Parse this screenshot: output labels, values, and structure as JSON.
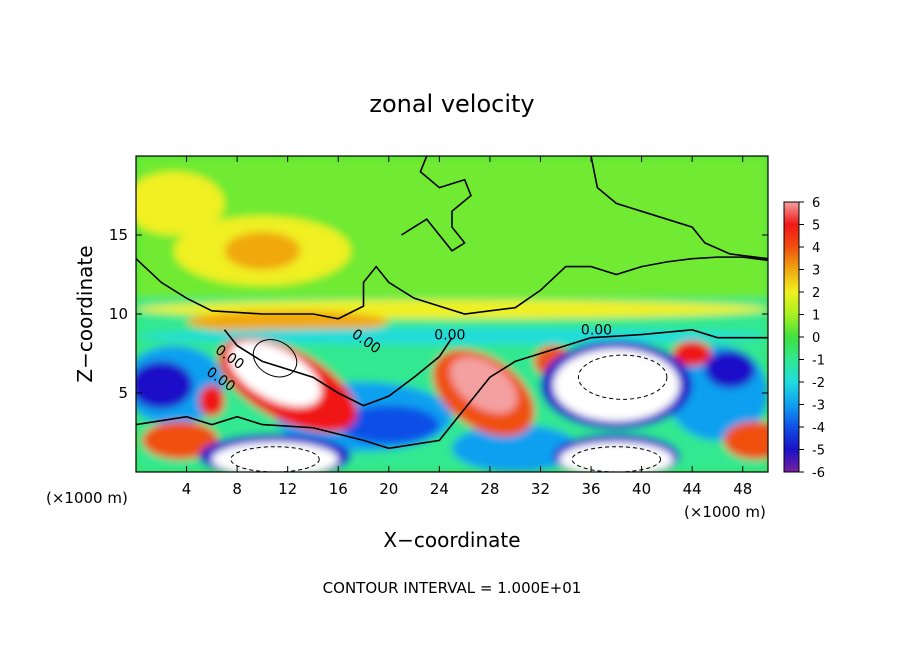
{
  "chart_data": {
    "type": "heatmap",
    "title": "zonal velocity",
    "xlabel": "X−coordinate",
    "ylabel": "Z−coordinate",
    "x_unit_left": "(×1000 m)",
    "x_unit_right": "(×1000 m)",
    "footer": "CONTOUR INTERVAL = 1.000E+01",
    "xlim": [
      0,
      50
    ],
    "ylim": [
      0,
      20
    ],
    "x_ticks": [
      4,
      8,
      12,
      16,
      20,
      24,
      28,
      32,
      36,
      40,
      44,
      48
    ],
    "y_ticks": [
      5,
      10,
      15
    ],
    "contour_labels": [
      "0.00",
      "0.00",
      "0.00",
      "0.00",
      "0.00"
    ],
    "colorbar": {
      "min": -6,
      "max": 6,
      "ticks": [
        6,
        5,
        4,
        3,
        2,
        1,
        0,
        -1,
        -2,
        -3,
        -4,
        -5,
        -6
      ],
      "stops": [
        {
          "v": -6,
          "c": "#7a1fa0"
        },
        {
          "v": -5,
          "c": "#1a10c8"
        },
        {
          "v": -4,
          "c": "#1050e6"
        },
        {
          "v": -3,
          "c": "#10a0f0"
        },
        {
          "v": -2,
          "c": "#20dcdc"
        },
        {
          "v": -1,
          "c": "#30e890"
        },
        {
          "v": 0,
          "c": "#40e040"
        },
        {
          "v": 1,
          "c": "#a8f020"
        },
        {
          "v": 2,
          "c": "#f0f020"
        },
        {
          "v": 3,
          "c": "#f0a810"
        },
        {
          "v": 4,
          "c": "#f05010"
        },
        {
          "v": 5,
          "c": "#f01818"
        },
        {
          "v": 6,
          "c": "#f4a0a0"
        }
      ]
    },
    "features": [
      {
        "kind": "warm_band",
        "x": [
          0,
          50
        ],
        "z": [
          10,
          11
        ],
        "value": 2
      },
      {
        "kind": "warm_blob",
        "x": [
          4,
          20
        ],
        "z": [
          12,
          16
        ],
        "value": 2.5
      },
      {
        "kind": "jet_blob",
        "x": [
          6,
          16
        ],
        "z": [
          4,
          10
        ],
        "value": 8
      },
      {
        "kind": "jet_blob",
        "x": [
          24,
          32
        ],
        "z": [
          2,
          9
        ],
        "value": 6
      },
      {
        "kind": "jet_blob",
        "x": [
          33,
          44
        ],
        "z": [
          3,
          8
        ],
        "value": -8
      },
      {
        "kind": "jet_blob",
        "x": [
          6,
          16
        ],
        "z": [
          0,
          2
        ],
        "value": -8
      },
      {
        "kind": "jet_blob",
        "x": [
          34,
          42
        ],
        "z": [
          0,
          2
        ],
        "value": -8
      },
      {
        "kind": "cold_band",
        "x": [
          0,
          6
        ],
        "z": [
          2,
          7
        ],
        "value": -5
      },
      {
        "kind": "cold_band",
        "x": [
          14,
          26
        ],
        "z": [
          0,
          5
        ],
        "value": -4
      }
    ]
  }
}
